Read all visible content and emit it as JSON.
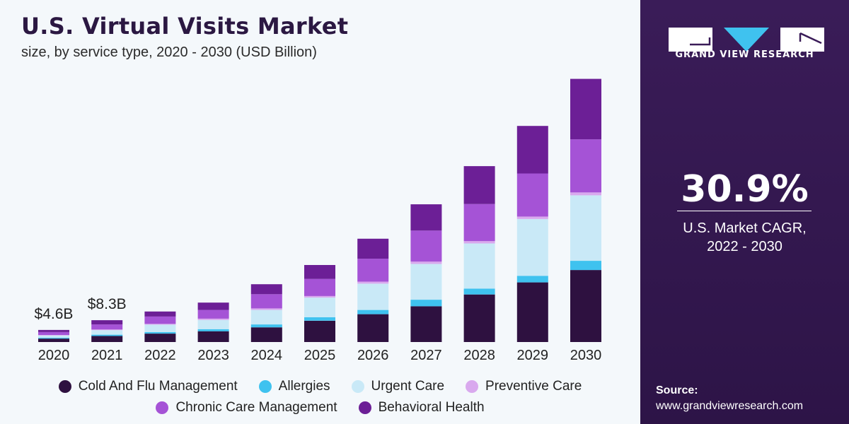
{
  "header": {
    "title": "U.S. Virtual Visits Market",
    "subtitle": "size, by service type, 2020 - 2030 (USD Billion)"
  },
  "sidebar": {
    "logo_text": "GRAND VIEW RESEARCH",
    "cagr_value": "30.9%",
    "cagr_label_line1": "U.S. Market CAGR,",
    "cagr_label_line2": "2022 - 2030",
    "source_label": "Source:",
    "source_url": "www.grandviewresearch.com"
  },
  "colors": {
    "background_left": "#f4f8fb",
    "panel": "#3a1c58",
    "cold_and_flu": "#2e1140",
    "allergies": "#3fc2ef",
    "urgent_care": "#c9e9f7",
    "preventive_care": "#d9a9ee",
    "chronic_care": "#a553d6",
    "behavioral_health": "#6c1f96"
  },
  "chart_data": {
    "type": "bar",
    "stacked": true,
    "title": "U.S. Virtual Visits Market",
    "subtitle": "size, by service type, 2020 - 2030 (USD Billion)",
    "categories": [
      "2020",
      "2021",
      "2022",
      "2023",
      "2024",
      "2025",
      "2026",
      "2027",
      "2028",
      "2029",
      "2030"
    ],
    "series": [
      {
        "name": "Cold And Flu Management",
        "color": "#2e1140",
        "values": [
          1.3,
          2.3,
          3.2,
          4.1,
          5.6,
          8.1,
          10.6,
          13.6,
          18.1,
          22.7,
          27.4
        ]
      },
      {
        "name": "Allergies",
        "color": "#3fc2ef",
        "values": [
          0.3,
          0.5,
          0.6,
          0.8,
          1.1,
          1.3,
          1.6,
          2.5,
          2.2,
          2.5,
          3.5
        ]
      },
      {
        "name": "Urgent Care",
        "color": "#c9e9f7",
        "values": [
          0.9,
          1.7,
          2.8,
          3.5,
          5.5,
          7.5,
          10.0,
          13.6,
          17.2,
          21.6,
          24.9
        ]
      },
      {
        "name": "Preventive Care",
        "color": "#d9a9ee",
        "values": [
          0.2,
          0.3,
          0.3,
          0.5,
          0.6,
          0.6,
          0.8,
          0.9,
          0.9,
          0.9,
          1.1
        ]
      },
      {
        "name": "Chronic Care Management",
        "color": "#a553d6",
        "values": [
          1.1,
          1.9,
          2.8,
          3.3,
          5.4,
          6.5,
          8.7,
          11.8,
          14.1,
          16.4,
          20.2
        ]
      },
      {
        "name": "Behavioral Health",
        "color": "#6c1f96",
        "values": [
          0.8,
          1.6,
          1.9,
          2.8,
          3.8,
          5.3,
          7.6,
          10.0,
          14.4,
          18.1,
          23.0
        ]
      }
    ],
    "data_labels": [
      {
        "category": "2020",
        "text": "$4.6B"
      },
      {
        "category": "2021",
        "text": "$8.3B"
      }
    ],
    "ylim": [
      0,
      100
    ],
    "grid": false,
    "legend_position": "bottom"
  }
}
